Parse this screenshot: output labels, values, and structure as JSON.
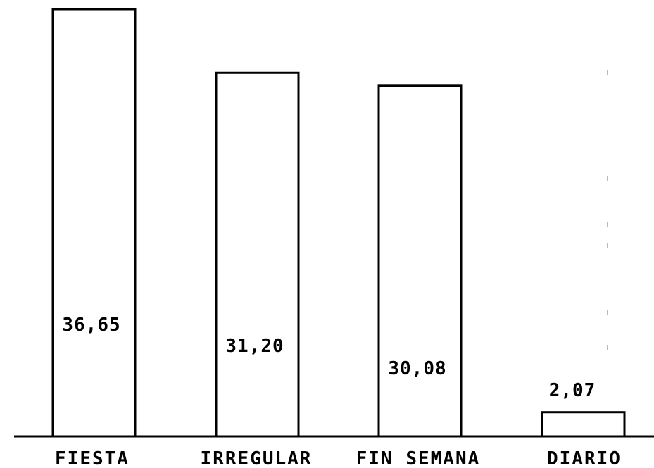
{
  "chart_data": {
    "type": "bar",
    "categories": [
      "FIESTA",
      "IRREGULAR",
      "FIN SEMANA",
      "DIARIO"
    ],
    "values": [
      36.65,
      31.2,
      30.08,
      2.07
    ],
    "value_labels": [
      "36,65",
      "31,20",
      "30,08",
      "2,07"
    ],
    "title": "",
    "xlabel": "",
    "ylabel": "",
    "ylim": [
      0,
      36.65
    ],
    "grid": false,
    "legend": "none",
    "colors": {
      "bar_fill": "#ffffff",
      "bar_stroke": "#000000"
    }
  }
}
